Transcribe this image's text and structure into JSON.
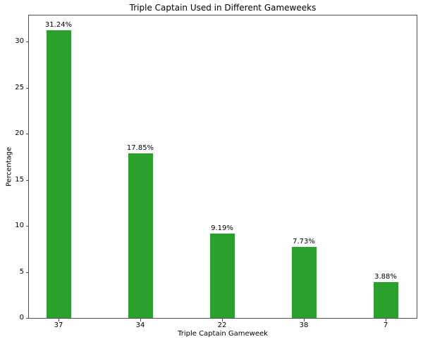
{
  "chart_data": {
    "type": "bar",
    "title": "Triple Captain Used in Different Gameweeks",
    "xlabel": "Triple Captain Gameweek",
    "ylabel": "Percentage",
    "categories": [
      "37",
      "34",
      "22",
      "38",
      "7"
    ],
    "values": [
      31.24,
      17.85,
      9.19,
      7.73,
      3.88
    ],
    "value_labels": [
      "31.24%",
      "17.85%",
      "9.19%",
      "7.73%",
      "3.88%"
    ],
    "yticks": [
      0,
      5,
      10,
      15,
      20,
      25,
      30
    ],
    "ylim": [
      0,
      32.85
    ],
    "grid": false,
    "legend": "none",
    "bar_color": "#2ca02c",
    "axis_color": "#4f4f4f",
    "text_color": "#000000",
    "background_color": "#ffffff"
  }
}
